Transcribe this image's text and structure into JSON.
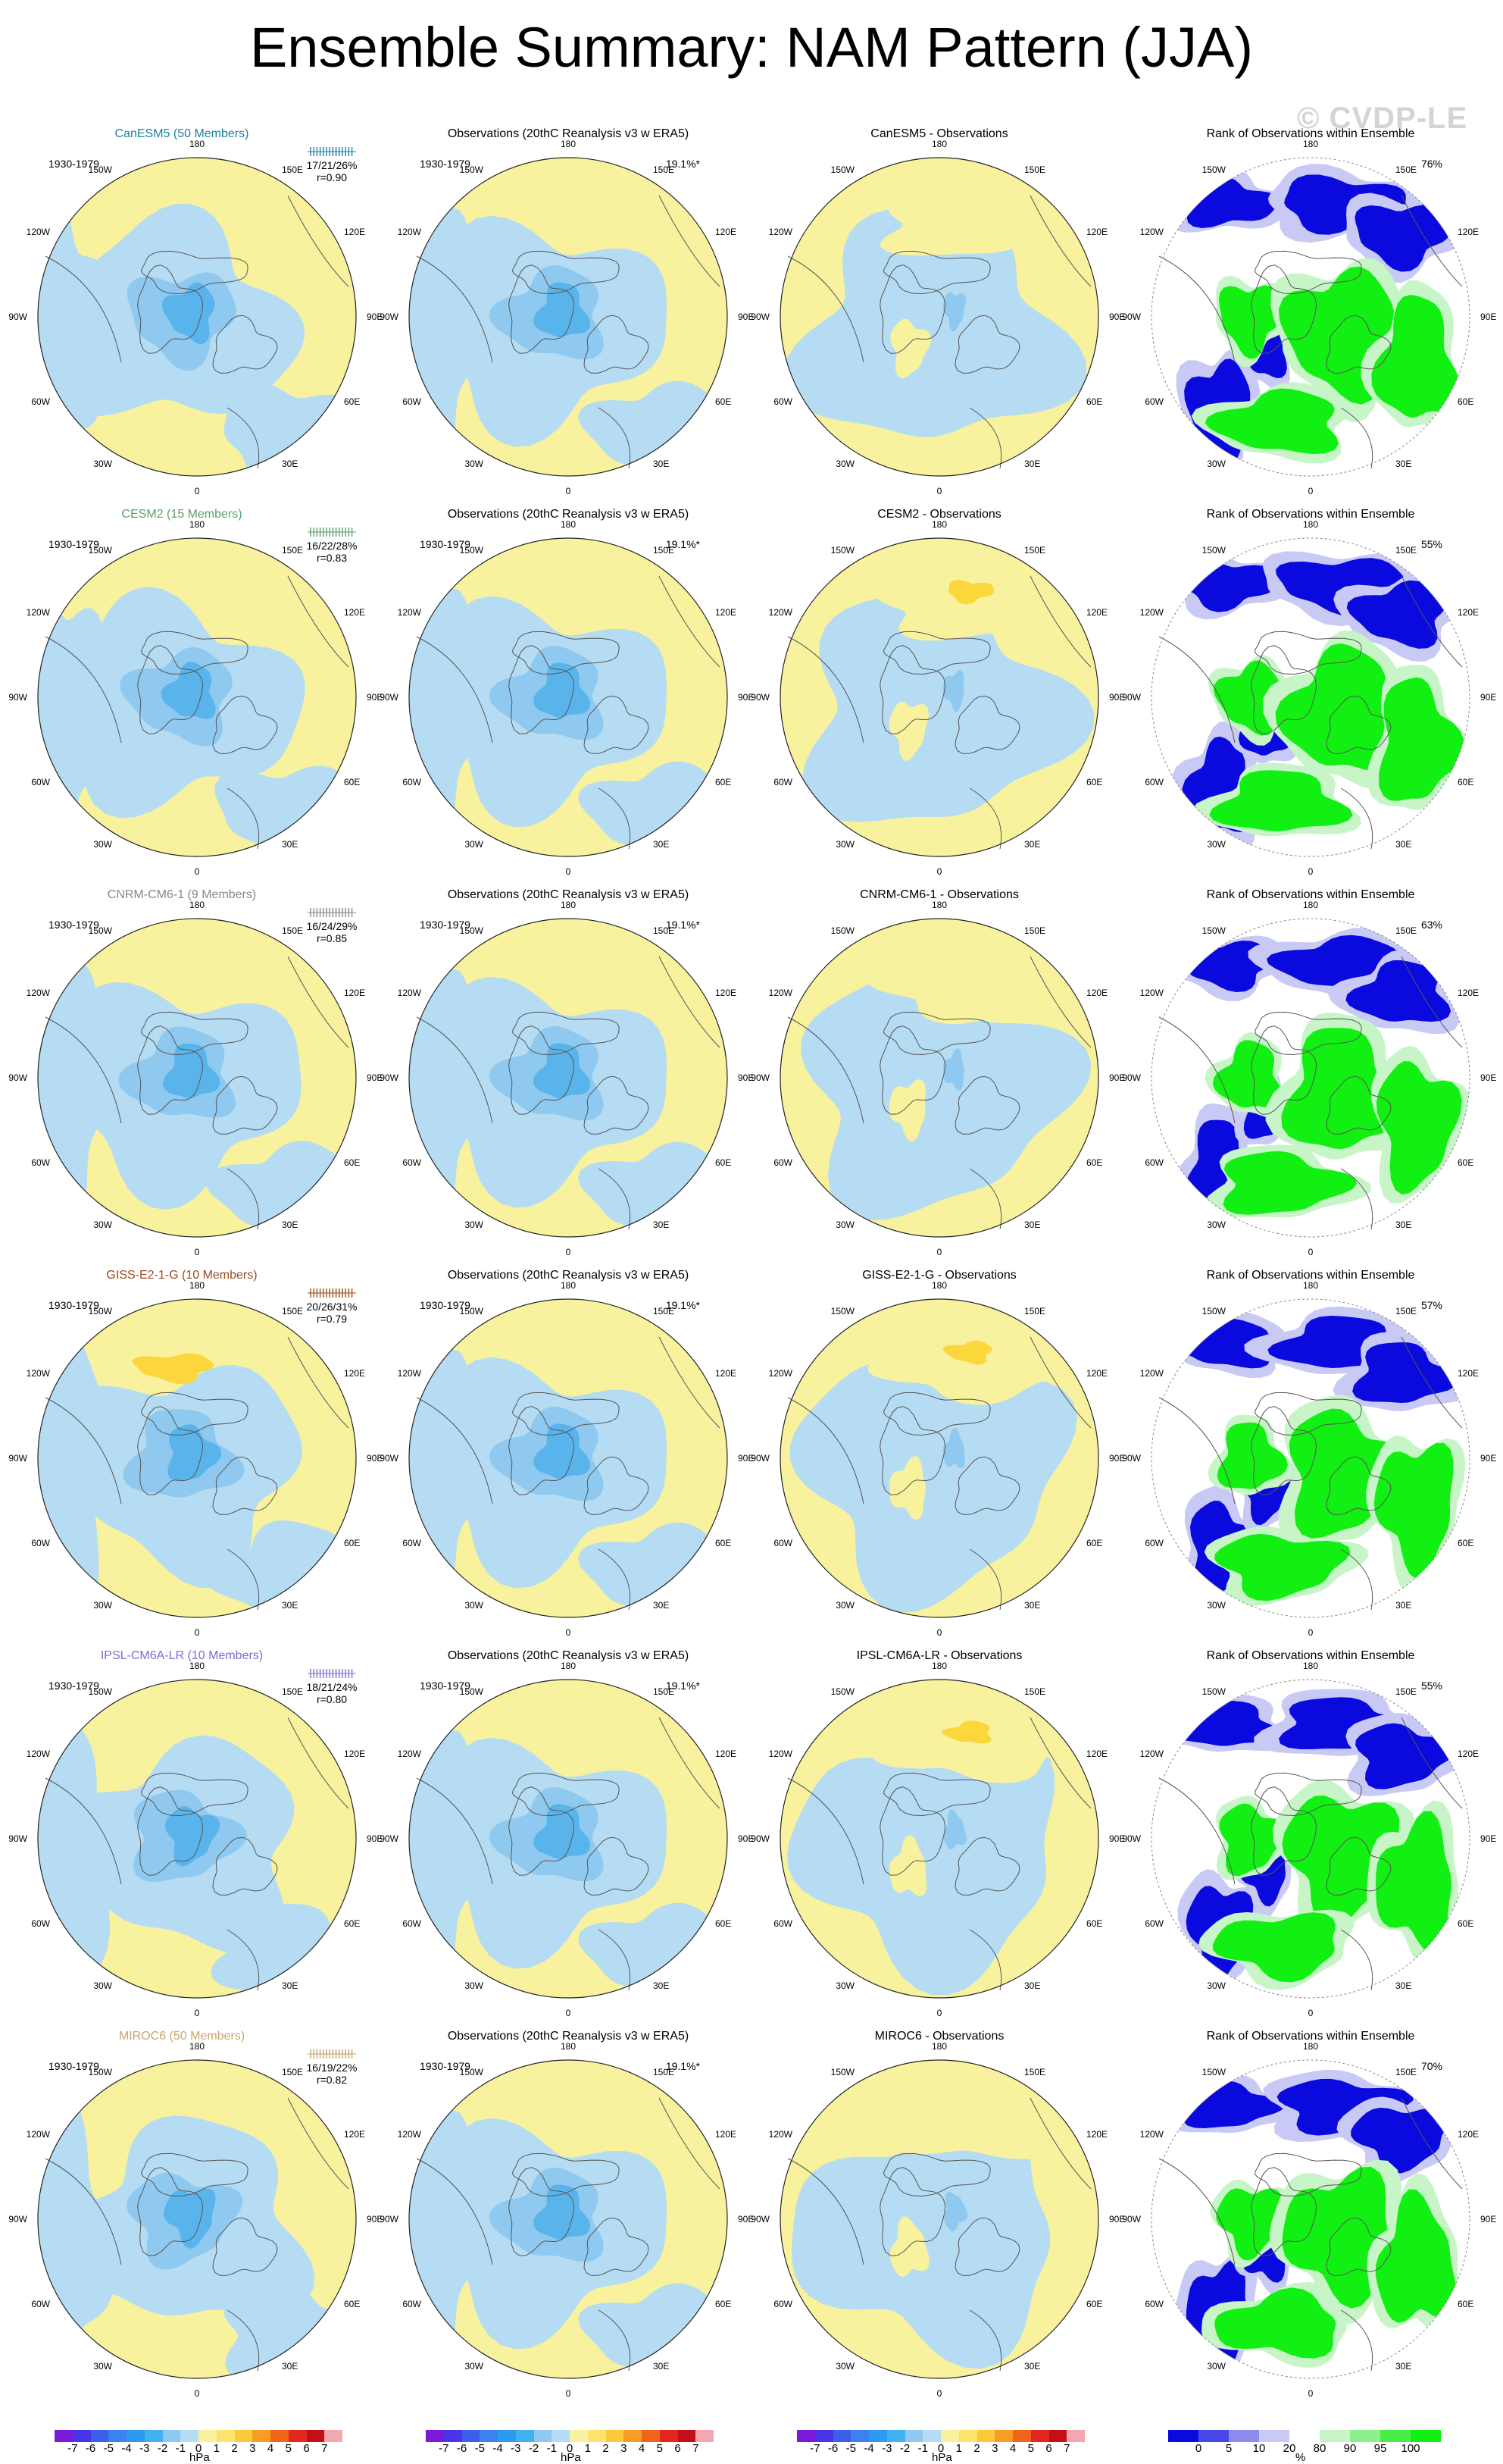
{
  "title": "Ensemble Summary: NAM Pattern (JJA)",
  "watermark": "© CVDP-LE",
  "period": "1930-1979",
  "obs_title": "Observations (20thC Reanalysis v3 w ERA5)",
  "rank_title": "Rank of Observations within Ensemble",
  "obs_stat": "19.1%*",
  "lon_labels": {
    "n": "180",
    "nne": "150E",
    "ne": "120E",
    "e": "90E",
    "se": "60E",
    "sse": "30E",
    "s": "0",
    "ssw": "30W",
    "sw": "60W",
    "w": "90W",
    "nw": "120W",
    "nnw": "150W"
  },
  "colors": {
    "yellow": "#f8f29e",
    "blue1": "#b5dcf3",
    "blue2": "#8fc9ef",
    "blue3": "#5ab4ec",
    "orange1": "#fbd73c",
    "rank_green": "#12ef12",
    "rank_blue": "#0a0adf",
    "rank_lightblue": "#c9c9f5",
    "rank_lightgreen": "#c8f5c8",
    "model_canesm5": "#1f7fa4",
    "model_cesm2": "#5e9e6b",
    "model_cnrm": "#878787",
    "model_giss": "#9a4b1e",
    "model_ipsl": "#7c6cd8",
    "model_miroc": "#caa36d"
  },
  "rows": [
    {
      "model": "CanESM5 (50 Members)",
      "model_color_key": "model_canesm5",
      "pct": "17/21/26%",
      "r": "r=0.90",
      "diff_title": "CanESM5 - Observations",
      "rank_pct": "76%"
    },
    {
      "model": "CESM2 (15 Members)",
      "model_color_key": "model_cesm2",
      "pct": "16/22/28%",
      "r": "r=0.83",
      "diff_title": "CESM2 - Observations",
      "rank_pct": "55%"
    },
    {
      "model": "CNRM-CM6-1 (9 Members)",
      "model_color_key": "model_cnrm",
      "pct": "16/24/29%",
      "r": "r=0.85",
      "diff_title": "CNRM-CM6-1 - Observations",
      "rank_pct": "63%"
    },
    {
      "model": "GISS-E2-1-G (10 Members)",
      "model_color_key": "model_giss",
      "pct": "20/26/31%",
      "r": "r=0.79",
      "diff_title": "GISS-E2-1-G - Observations",
      "rank_pct": "57%"
    },
    {
      "model": "IPSL-CM6A-LR (10 Members)",
      "model_color_key": "model_ipsl",
      "pct": "18/21/24%",
      "r": "r=0.80",
      "diff_title": "IPSL-CM6A-LR - Observations",
      "rank_pct": "55%"
    },
    {
      "model": "MIROC6 (50 Members)",
      "model_color_key": "model_miroc",
      "pct": "16/19/22%",
      "r": "r=0.82",
      "diff_title": "MIROC6 - Observations",
      "rank_pct": "70%"
    }
  ],
  "hpa_colorbar": {
    "unit": "hPa",
    "ticks": [
      "-7",
      "-6",
      "-5",
      "-4",
      "-3",
      "-2",
      "-1",
      "0",
      "1",
      "2",
      "3",
      "4",
      "5",
      "6",
      "7"
    ],
    "colors": [
      "#7a1ad8",
      "#4a36e8",
      "#3c5fea",
      "#3c82ef",
      "#2c9aef",
      "#43b1f1",
      "#8fc9ef",
      "#b5dcf3",
      "#f8f29e",
      "#fbe36e",
      "#fbc93a",
      "#f79c24",
      "#f0641c",
      "#e3261e",
      "#c40f19",
      "#f3a7b0"
    ]
  },
  "rank_colorbar": {
    "unit": "%",
    "ticks": [
      "0",
      "5",
      "10",
      "20",
      "80",
      "90",
      "95",
      "100"
    ],
    "colors": [
      "#0a0adf",
      "#4848e6",
      "#8c8cee",
      "#c9c9f5",
      "#ffffff",
      "#c8f5c8",
      "#8cf08c",
      "#48ee48",
      "#12ef12"
    ]
  }
}
